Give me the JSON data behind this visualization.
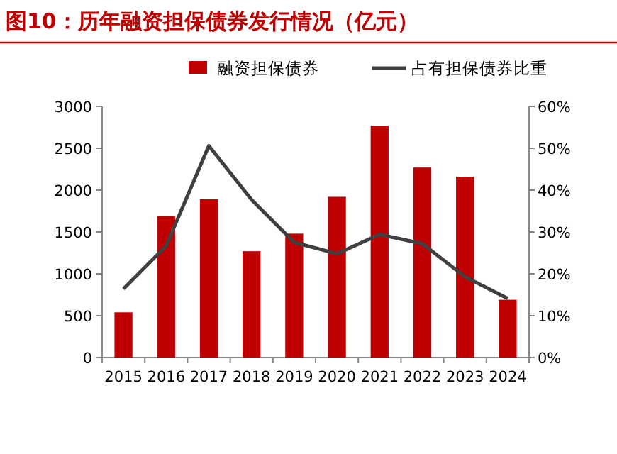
{
  "chart_data": {
    "type": "bar",
    "title": "图10：历年融资担保债券发行情况（亿元）",
    "categories": [
      "2015",
      "2016",
      "2017",
      "2018",
      "2019",
      "2020",
      "2021",
      "2022",
      "2023",
      "2024"
    ],
    "series": [
      {
        "name": "融资担保债券",
        "color": "#c00000",
        "values": [
          540,
          1690,
          1890,
          1270,
          1480,
          1920,
          2770,
          2270,
          2160,
          690
        ]
      },
      {
        "name": "占有担保债券比重",
        "type": "line",
        "axis": "y2",
        "color": "#404040",
        "values": [
          16.4,
          26.7,
          50.6,
          37.7,
          27.5,
          24.8,
          29.4,
          27.2,
          19.3,
          14.1
        ]
      }
    ],
    "ylim": [
      0,
      3000
    ],
    "yticks": [
      0,
      500,
      1000,
      1500,
      2000,
      2500,
      3000
    ],
    "y2lim": [
      0,
      60
    ],
    "y2ticks": [
      {
        "value": 0,
        "label": "0%"
      },
      {
        "value": 10,
        "label": "10%"
      },
      {
        "value": 20,
        "label": "20%"
      },
      {
        "value": 30,
        "label": "30%"
      },
      {
        "value": 40,
        "label": "40%"
      },
      {
        "value": 50,
        "label": "50%"
      },
      {
        "value": 60,
        "label": "60%"
      }
    ],
    "legend": "top",
    "grid": false,
    "marker": "none",
    "line_style": "solid"
  }
}
